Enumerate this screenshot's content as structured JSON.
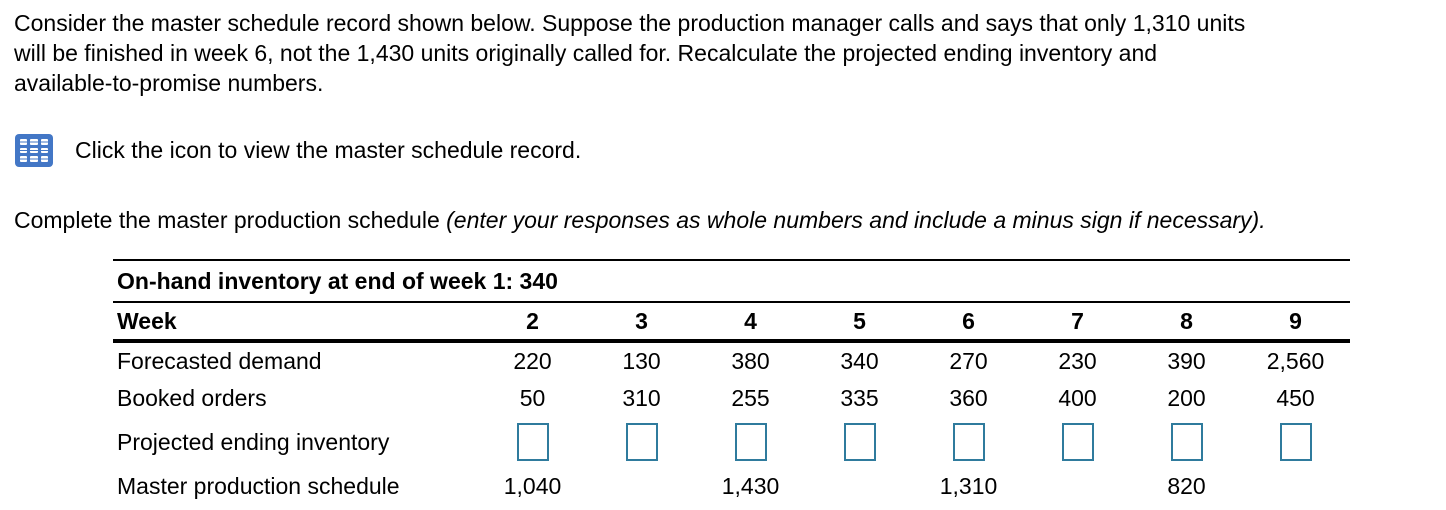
{
  "intro": {
    "lines": [
      "Consider the master schedule record shown below. Suppose the production manager calls and says that only 1,310 units",
      "will be finished in week 6, not the 1,430 units originally called for. Recalculate the projected ending inventory and",
      "available-to-promise numbers."
    ]
  },
  "icon_row": {
    "icon": "table-grid-icon",
    "label": "Click the icon to view the master schedule record."
  },
  "instruction": {
    "normal": "Complete the master production schedule ",
    "italic": "(enter your responses as whole numbers and include a minus sign if necessary)."
  },
  "table": {
    "caption": "On-hand inventory at end of week 1: 340",
    "week_label": "Week",
    "weeks": [
      "2",
      "3",
      "4",
      "5",
      "6",
      "7",
      "8",
      "9"
    ],
    "forecast": {
      "label": "Forecasted demand",
      "values": [
        "220",
        "130",
        "380",
        "340",
        "270",
        "230",
        "390",
        "2,560"
      ]
    },
    "booked": {
      "label": "Booked orders",
      "values": [
        "50",
        "310",
        "255",
        "335",
        "360",
        "400",
        "200",
        "450"
      ]
    },
    "projected": {
      "label": "Projected ending inventory"
    },
    "mps": {
      "label": "Master production schedule",
      "values": [
        "1,040",
        "",
        "1,430",
        "",
        "1,310",
        "",
        "820",
        ""
      ]
    }
  },
  "colors": {
    "input_border": "#2f7b9d",
    "icon_blue": "#4377c6",
    "text": "#000000"
  }
}
